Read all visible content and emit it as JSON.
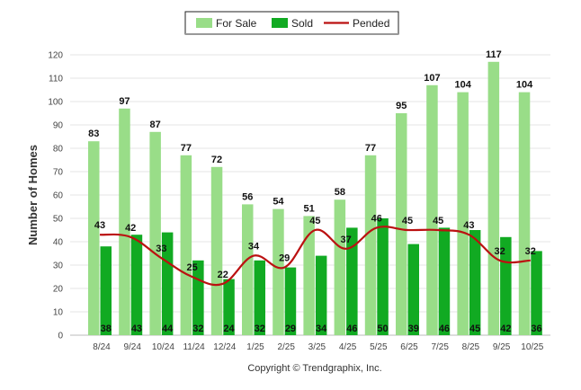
{
  "chart_data": {
    "type": "bar",
    "categories": [
      "8/24",
      "9/24",
      "10/24",
      "11/24",
      "12/24",
      "1/25",
      "2/25",
      "3/25",
      "4/25",
      "5/25",
      "6/25",
      "7/25",
      "8/25",
      "9/25",
      "10/25"
    ],
    "series": [
      {
        "name": "For Sale",
        "kind": "bar",
        "color": "#99dd88",
        "values": [
          83,
          97,
          87,
          77,
          72,
          56,
          54,
          51,
          58,
          77,
          95,
          107,
          104,
          117,
          104
        ]
      },
      {
        "name": "Sold",
        "kind": "bar",
        "color": "#11aa22",
        "values": [
          38,
          43,
          44,
          32,
          24,
          32,
          29,
          34,
          46,
          50,
          39,
          46,
          45,
          42,
          36
        ]
      },
      {
        "name": "Pended",
        "kind": "line",
        "color": "#bb1111",
        "values": [
          43,
          42,
          33,
          25,
          22,
          34,
          29,
          45,
          37,
          46,
          45,
          45,
          43,
          32,
          32
        ]
      }
    ],
    "title": "",
    "xlabel": "",
    "ylabel": "Number of Homes",
    "ylim": [
      0,
      120
    ],
    "yticks": [
      0,
      10,
      20,
      30,
      40,
      50,
      60,
      70,
      80,
      90,
      100,
      110,
      120
    ],
    "grid": true,
    "legend": "top-center"
  },
  "credit": "Copyright © Trendgraphix, Inc."
}
